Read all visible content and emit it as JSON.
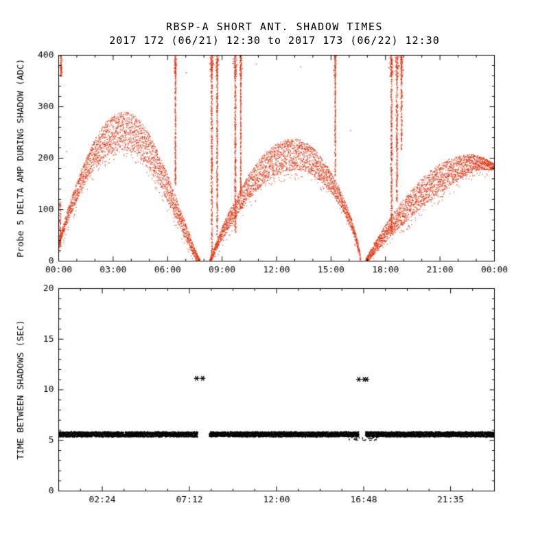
{
  "chart_data": [
    {
      "type": "scatter",
      "id": "probe5-delta-amp",
      "title": "RBSP-A SHORT ANT. SHADOW TIMES",
      "subtitle": "2017 172 (06/21) 12:30 to 2017 173 (06/22) 12:30",
      "ylabel": "Probe 5 DELTA AMP DURING SHADOW (ADC)",
      "xlabel": "",
      "xlim_hours": [
        0,
        24
      ],
      "ylim": [
        0,
        400
      ],
      "yticks": [
        0,
        100,
        200,
        300,
        400
      ],
      "ytick_minor_step": 20,
      "xticks": [
        {
          "hour": 0,
          "label": "00:00"
        },
        {
          "hour": 3,
          "label": "03:00"
        },
        {
          "hour": 6,
          "label": "06:00"
        },
        {
          "hour": 9,
          "label": "09:00"
        },
        {
          "hour": 12,
          "label": "12:00"
        },
        {
          "hour": 15,
          "label": "15:00"
        },
        {
          "hour": 18,
          "label": "18:00"
        },
        {
          "hour": 21,
          "label": "21:00"
        },
        {
          "hour": 24,
          "label": "00:00"
        }
      ],
      "xtick_minor_step": 1,
      "point_color": "#dd3512",
      "axis_color": "#000000",
      "humps": [
        {
          "t_start": 0.0,
          "t_peak": 3.6,
          "t_end": 7.8,
          "y_start": 32,
          "y_peak": 290,
          "y_end": 3,
          "band": 75,
          "rise_exp": 0.9,
          "fall_exp": 1.15
        },
        {
          "t_start": 8.35,
          "t_peak": 12.9,
          "t_end": 16.65,
          "y_start": 3,
          "y_peak": 237,
          "y_end": 3,
          "band": 62,
          "rise_exp": 0.9,
          "fall_exp": 0.7
        },
        {
          "t_start": 16.95,
          "t_peak": 22.7,
          "t_end": 24.0,
          "y_start": 3,
          "y_peak": 207,
          "y_end": 188,
          "band": 58,
          "rise_exp": 0.9,
          "fall_exp": 1.0
        }
      ],
      "spikes": [
        {
          "t": 0.1,
          "y0": 25,
          "y1": 115,
          "w": 0.045
        },
        {
          "t": 0.15,
          "y0": 358,
          "y1": 400,
          "w": 0.025
        },
        {
          "t": 6.45,
          "y0": 145,
          "y1": 400,
          "w": 0.03
        },
        {
          "t": 8.45,
          "y0": 8,
          "y1": 400,
          "w": 0.05
        },
        {
          "t": 8.75,
          "y0": 45,
          "y1": 400,
          "w": 0.04
        },
        {
          "t": 9.75,
          "y0": 55,
          "y1": 400,
          "w": 0.05
        },
        {
          "t": 10.05,
          "y0": 125,
          "y1": 400,
          "w": 0.03
        },
        {
          "t": 15.25,
          "y0": 165,
          "y1": 400,
          "w": 0.03
        },
        {
          "t": 18.35,
          "y0": 48,
          "y1": 400,
          "w": 0.05
        },
        {
          "t": 18.65,
          "y0": 115,
          "y1": 400,
          "w": 0.05
        },
        {
          "t": 18.9,
          "y0": 215,
          "y1": 400,
          "w": 0.04
        }
      ],
      "extra_points": [
        [
          0.45,
          212
        ],
        [
          7.05,
          365
        ],
        [
          10.9,
          382
        ],
        [
          13.35,
          377
        ],
        [
          16.1,
          253
        ]
      ]
    },
    {
      "type": "scatter",
      "id": "time-between-shadows",
      "title": "",
      "ylabel": "TIME BETWEEN SHADOWS (SEC)",
      "xlabel": "",
      "xlim_hours": [
        0,
        24
      ],
      "ylim": [
        0,
        20
      ],
      "yticks": [
        0,
        5,
        10,
        15,
        20
      ],
      "ytick_minor_step": 1,
      "xticks": [
        {
          "hour": 2.4,
          "label": "02:24"
        },
        {
          "hour": 7.2,
          "label": "07:12"
        },
        {
          "hour": 12.0,
          "label": "12:00"
        },
        {
          "hour": 16.8,
          "label": "16:48"
        },
        {
          "hour": 21.5833,
          "label": "21:35"
        }
      ],
      "xtick_minor_step": 1.2,
      "point_color": "#000000",
      "axis_color": "#000000",
      "band_segments": [
        {
          "t0": 0.0,
          "t1": 7.68,
          "y0": 5.3,
          "y1": 5.82
        },
        {
          "t0": 8.32,
          "t1": 16.55,
          "y0": 5.3,
          "y1": 5.82
        },
        {
          "t0": 16.92,
          "t1": 24.0,
          "y0": 5.3,
          "y1": 5.82
        }
      ],
      "fringe_points": {
        "t0": 16.0,
        "t1": 17.6,
        "y0": 4.95,
        "y1": 5.3,
        "count": 45
      },
      "outliers": [
        {
          "t": 7.62,
          "y": 11.1
        },
        {
          "t": 7.95,
          "y": 11.1
        },
        {
          "t": 16.55,
          "y": 11.0
        },
        {
          "t": 16.85,
          "y": 11.0
        },
        {
          "t": 16.98,
          "y": 11.0
        }
      ]
    }
  ]
}
